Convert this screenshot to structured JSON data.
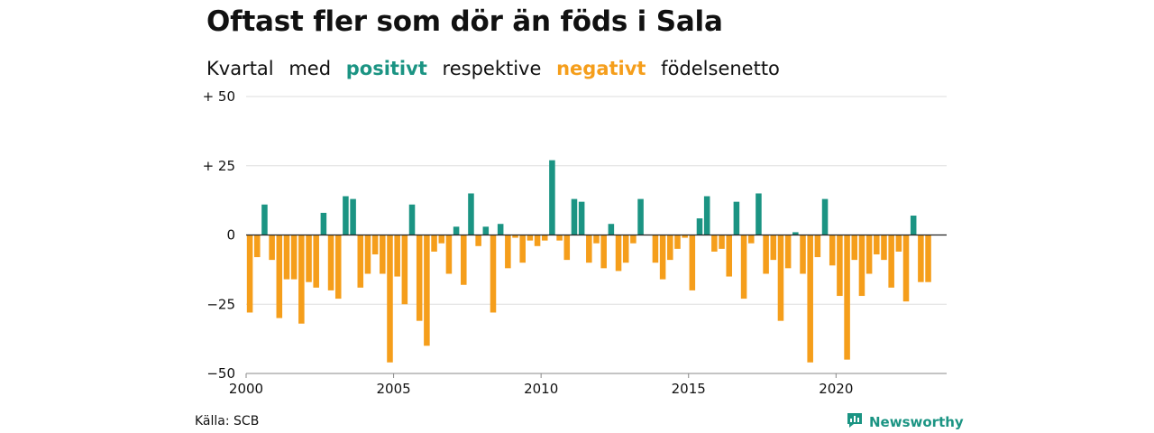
{
  "title": "Oftast fler som dör än föds i Sala",
  "subtitle": {
    "part1": "Kvartal",
    "part2": "med",
    "positive_word": "positivt",
    "part3": "respektive",
    "negative_word": "negativt",
    "part4": "födelsenetto"
  },
  "source": "Källa: SCB",
  "brand": {
    "name": "Newsworthy",
    "icon": "newsworthy-logo-icon"
  },
  "colors": {
    "positive": "#1b9483",
    "negative": "#f59e1b",
    "grid": "#dddddd",
    "zero_line": "#222222"
  },
  "chart_data": {
    "type": "bar",
    "title": "Oftast fler som dör än föds i Sala",
    "xlabel": "",
    "ylabel": "",
    "ylim": [
      -50,
      50
    ],
    "xlim": [
      2000,
      2023.75
    ],
    "y_ticks": [
      {
        "value": 50,
        "label": "+ 50"
      },
      {
        "value": 25,
        "label": "+ 25"
      },
      {
        "value": 0,
        "label": "0"
      },
      {
        "value": -25,
        "label": "−25"
      },
      {
        "value": -50,
        "label": "−50"
      }
    ],
    "x_ticks": [
      {
        "value": 2000,
        "label": "2000"
      },
      {
        "value": 2005,
        "label": "2005"
      },
      {
        "value": 2010,
        "label": "2010"
      },
      {
        "value": 2015,
        "label": "2015"
      },
      {
        "value": 2020,
        "label": "2020"
      }
    ],
    "grid": true,
    "start_year": 2000,
    "frequency": "quarter",
    "values": [
      -28,
      -8,
      11,
      -9,
      -30,
      -16,
      -16,
      -32,
      -17,
      -19,
      8,
      -20,
      -23,
      14,
      13,
      -19,
      -14,
      -7,
      -14,
      -46,
      -15,
      -25,
      11,
      -31,
      -40,
      -6,
      -3,
      -14,
      3,
      -18,
      15,
      -4,
      3,
      -28,
      4,
      -12,
      -1,
      -10,
      -2,
      -4,
      -2,
      27,
      -2,
      -9,
      13,
      12,
      -10,
      -3,
      -12,
      4,
      -13,
      -10,
      -3,
      13,
      0,
      -10,
      -16,
      -9,
      -5,
      -1,
      -20,
      6,
      14,
      -6,
      -5,
      -15,
      12,
      -23,
      -3,
      15,
      -14,
      -9,
      -31,
      -12,
      1,
      -14,
      -46,
      -8,
      13,
      -11,
      -22,
      -45,
      -9,
      -22,
      -14,
      -7,
      -9,
      -19,
      -6,
      -24,
      7,
      -17,
      -17
    ]
  }
}
